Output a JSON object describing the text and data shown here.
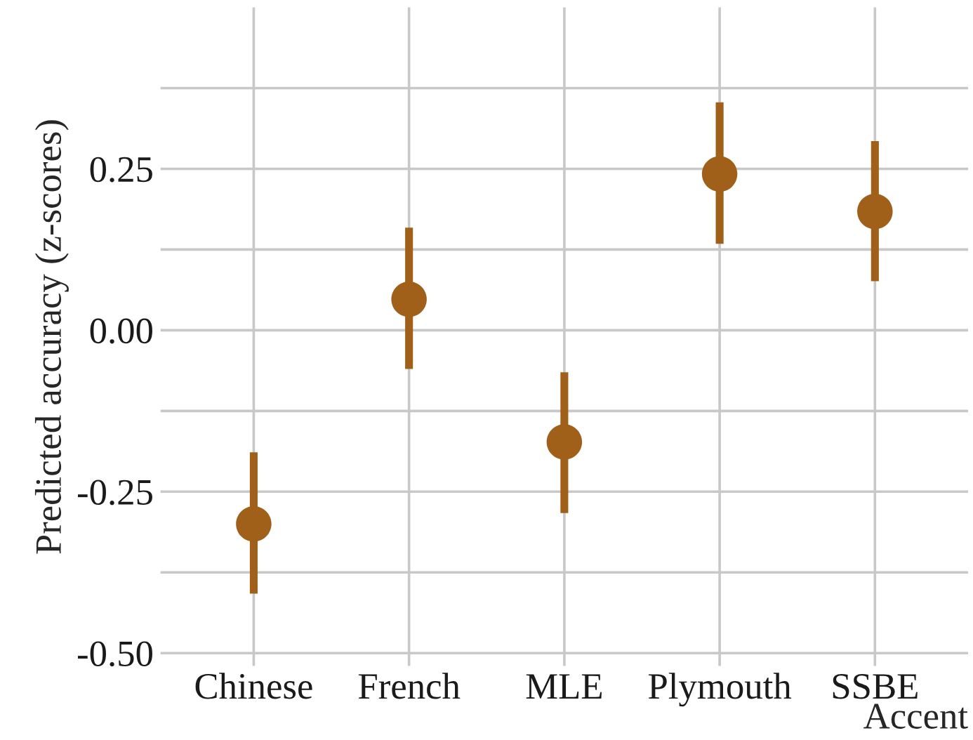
{
  "chart_data": {
    "type": "scatter",
    "xlabel": "Accent",
    "ylabel": "Predicted accuracy (z-scores)",
    "categories": [
      "Chinese",
      "French",
      "MLE",
      "Plymouth",
      "SSBE"
    ],
    "values": [
      -0.3,
      0.048,
      -0.173,
      0.242,
      0.184
    ],
    "errors": [
      [
        -0.408,
        -0.189
      ],
      [
        -0.06,
        0.159
      ],
      [
        -0.283,
        -0.065
      ],
      [
        0.134,
        0.353
      ],
      [
        0.076,
        0.293
      ]
    ],
    "color": "#a0601a",
    "marker": "circle",
    "ylim": [
      -0.52,
      0.5
    ],
    "yticks": [
      {
        "value": -0.5,
        "label": "-0.50"
      },
      {
        "value": -0.375,
        "label": null
      },
      {
        "value": -0.25,
        "label": "-0.25"
      },
      {
        "value": -0.125,
        "label": null
      },
      {
        "value": 0,
        "label": "0.00"
      },
      {
        "value": 0.125,
        "label": null
      },
      {
        "value": 0.25,
        "label": "0.25"
      },
      {
        "value": 0.375,
        "label": null
      }
    ],
    "grid": true
  }
}
